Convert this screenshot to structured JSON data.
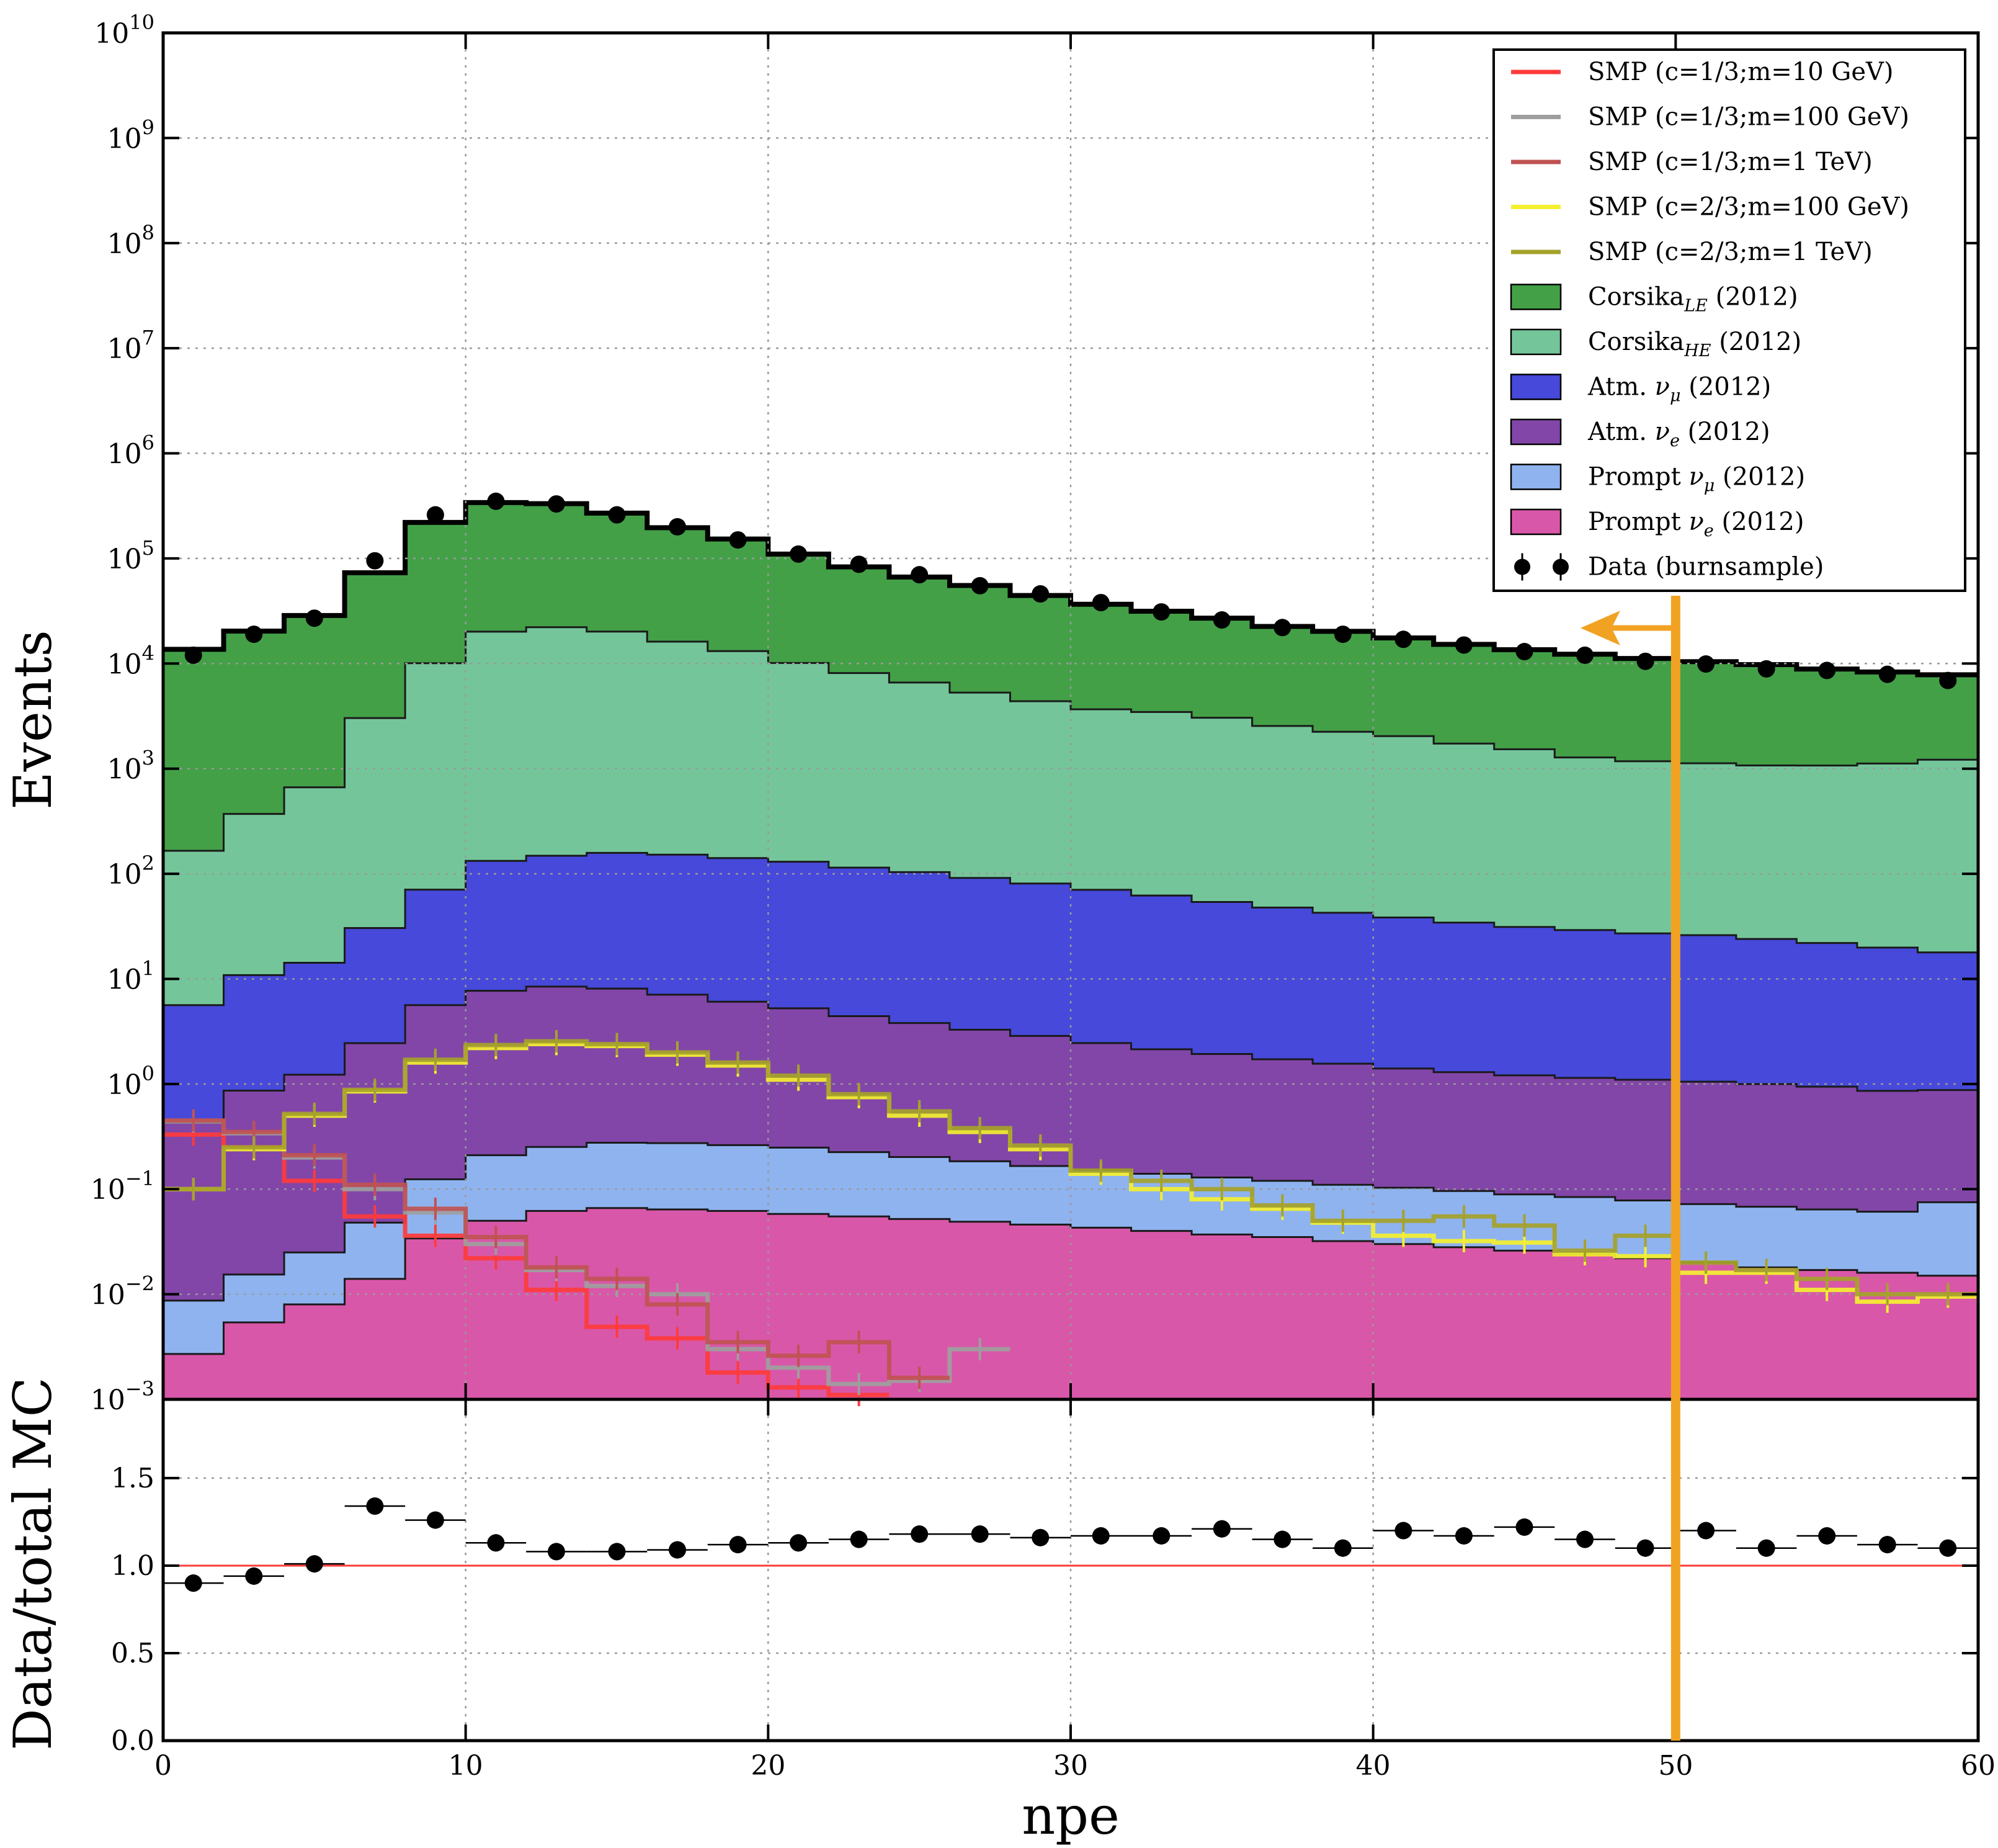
{
  "chart_data": [
    {
      "type": "histogram",
      "panel": "main",
      "xlabel": "",
      "ylabel": "Events",
      "xlim": [
        0,
        60
      ],
      "ylim": [
        0.001,
        10000000000
      ],
      "yscale": "log",
      "grid": true,
      "legend_position": "top-right",
      "bin_edges": [
        0,
        2,
        4,
        6,
        8,
        10,
        12,
        14,
        16,
        18,
        20,
        22,
        24,
        26,
        28,
        30,
        32,
        34,
        36,
        38,
        40,
        42,
        44,
        46,
        48,
        50,
        52,
        54,
        56,
        58,
        60
      ],
      "x_ticks": [
        "0",
        "10",
        "20",
        "30",
        "40",
        "50",
        "60"
      ],
      "y_ticks": [
        "10^-3",
        "10^-2",
        "10^-1",
        "10^0",
        "10^1",
        "10^2",
        "10^3",
        "10^4",
        "10^5",
        "10^6",
        "10^7",
        "10^8",
        "10^9",
        "10^10"
      ],
      "stacked_series": [
        {
          "name": "Prompt νe (2012)",
          "legend_main": "Prompt ",
          "legend_sym": "ν",
          "legend_sub": "e",
          "legend_tail": " (2012)",
          "color": "#d957a8",
          "values": [
            0.0027,
            0.0054,
            0.008,
            0.014,
            0.034,
            0.05,
            0.062,
            0.066,
            0.064,
            0.062,
            0.058,
            0.055,
            0.052,
            0.049,
            0.046,
            0.043,
            0.04,
            0.037,
            0.035,
            0.032,
            0.03,
            0.028,
            0.026,
            0.024,
            0.022,
            0.02,
            0.018,
            0.017,
            0.016,
            0.015
          ]
        },
        {
          "name": "Prompt νμ (2012)",
          "legend_main": "Prompt ",
          "legend_sym": "ν",
          "legend_sub": "μ",
          "legend_tail": " (2012)",
          "color": "#8fb3ef",
          "values": [
            0.006,
            0.01,
            0.017,
            0.034,
            0.09,
            0.16,
            0.19,
            0.21,
            0.21,
            0.2,
            0.19,
            0.17,
            0.15,
            0.135,
            0.12,
            0.11,
            0.1,
            0.092,
            0.085,
            0.078,
            0.073,
            0.068,
            0.063,
            0.06,
            0.056,
            0.052,
            0.05,
            0.047,
            0.045,
            0.06
          ]
        },
        {
          "name": "Atm. νe (2012)",
          "legend_main": "Atm. ",
          "legend_sym": "ν",
          "legend_sub": "e",
          "legend_tail": " (2012)",
          "color": "#8246a8",
          "values": [
            0.42,
            0.85,
            1.2,
            2.4,
            5.5,
            7.5,
            8.2,
            7.8,
            6.8,
            5.8,
            5.0,
            4.2,
            3.6,
            3.1,
            2.7,
            2.3,
            2.0,
            1.8,
            1.6,
            1.45,
            1.3,
            1.2,
            1.12,
            1.06,
            1.02,
            0.98,
            0.93,
            0.88,
            0.8,
            0.8
          ]
        },
        {
          "name": "Atm. νμ (2012)",
          "legend_main": "Atm. ",
          "legend_sym": "ν",
          "legend_sub": "μ",
          "legend_tail": " (2012)",
          "color": "#4649d9",
          "values": [
            5.2,
            10,
            13,
            28,
            65,
            125,
            140,
            150,
            145,
            135,
            125,
            110,
            100,
            88,
            78,
            68,
            60,
            52,
            46,
            41,
            37,
            33,
            30,
            28,
            26,
            25,
            23,
            21,
            19,
            17
          ]
        },
        {
          "name": "CorsikaHE (2012)",
          "legend_main": "Corsika",
          "legend_sym": "",
          "legend_sub": "HE",
          "legend_tail": " (2012)",
          "color": "#74c69a",
          "values": [
            160,
            360,
            650,
            3000,
            10000,
            20000,
            22000,
            20000,
            16000,
            13000,
            10000,
            8000,
            6500,
            5200,
            4300,
            3600,
            3400,
            3000,
            2500,
            2200,
            2000,
            1700,
            1500,
            1250,
            1150,
            1100,
            1050,
            1050,
            1100,
            1200
          ]
        },
        {
          "name": "CorsikaLE (2012)",
          "legend_main": "Corsika",
          "legend_sym": "",
          "legend_sub": "LE",
          "legend_tail": " (2012)",
          "color": "#43a047",
          "values": [
            13500,
            20000,
            28000,
            70000,
            210000,
            320000,
            310000,
            250000,
            180000,
            140000,
            100000,
            75000,
            60000,
            50000,
            40000,
            33000,
            28000,
            24000,
            20000,
            18000,
            15500,
            13500,
            12000,
            11000,
            10000,
            9300,
            8700,
            7800,
            7200,
            6600
          ]
        }
      ],
      "smp_series": [
        {
          "name": "SMP (c=1/3;m=10 GeV)",
          "color": "#ff3b3b",
          "values": [
            0.33,
            0.25,
            0.12,
            0.055,
            0.036,
            0.022,
            0.011,
            0.0049,
            0.0038,
            0.0018,
            0.0013,
            0.0011,
            0.0005,
            0.00035,
            null,
            null,
            null,
            null,
            null,
            null,
            null,
            null,
            null,
            null,
            null,
            null,
            null,
            null,
            null,
            null
          ]
        },
        {
          "name": "SMP (c=1/3;m=100 GeV)",
          "color": "#9e9e9e",
          "values": [
            0.44,
            0.34,
            0.2,
            0.1,
            0.06,
            0.03,
            0.017,
            0.012,
            0.01,
            0.003,
            0.002,
            0.0014,
            0.0015,
            0.003,
            null,
            null,
            null,
            null,
            null,
            null,
            null,
            null,
            null,
            null,
            null,
            null,
            null,
            null,
            null,
            null
          ]
        },
        {
          "name": "SMP (c=1/3;m=1 TeV)",
          "color": "#c05252",
          "values": [
            0.45,
            0.35,
            0.21,
            0.11,
            0.065,
            0.035,
            0.018,
            0.014,
            0.008,
            0.0035,
            0.0026,
            0.0035,
            0.0016,
            0.0009,
            null,
            null,
            null,
            null,
            null,
            null,
            null,
            null,
            null,
            null,
            null,
            null,
            null,
            null,
            null,
            null
          ]
        },
        {
          "name": "SMP (c=2/3;m=100 GeV)",
          "color": "#f4f030",
          "values": [
            0.1,
            0.24,
            0.5,
            0.85,
            1.6,
            2.2,
            2.4,
            2.3,
            1.9,
            1.5,
            1.1,
            0.75,
            0.5,
            0.35,
            0.24,
            0.14,
            0.1,
            0.08,
            0.065,
            0.048,
            0.036,
            0.032,
            0.031,
            0.024,
            0.023,
            0.016,
            0.016,
            0.011,
            0.0085,
            0.0095
          ]
        },
        {
          "name": "SMP (c=2/3;m=1 TeV)",
          "color": "#a5a22a",
          "values": [
            0.1,
            0.25,
            0.52,
            0.88,
            1.7,
            2.35,
            2.55,
            2.4,
            2.0,
            1.6,
            1.2,
            0.8,
            0.55,
            0.38,
            0.26,
            0.15,
            0.12,
            0.1,
            0.07,
            0.05,
            0.05,
            0.055,
            0.045,
            0.026,
            0.036,
            0.02,
            0.017,
            0.014,
            0.01,
            0.01
          ]
        }
      ],
      "data_series": {
        "name": "Data (burnsample)",
        "x": [
          1,
          3,
          5,
          7,
          9,
          11,
          13,
          15,
          17,
          19,
          21,
          23,
          25,
          27,
          29,
          31,
          33,
          35,
          37,
          39,
          41,
          43,
          45,
          47,
          49,
          51,
          53,
          55,
          57,
          59
        ],
        "y": [
          12000,
          19000,
          27000,
          95000,
          260000,
          350000,
          330000,
          260000,
          200000,
          150000,
          110000,
          88000,
          70000,
          55000,
          46000,
          38000,
          31000,
          26000,
          22000,
          19000,
          17000,
          15000,
          13000,
          12000,
          10500,
          9900,
          8900,
          8600,
          7900,
          6900
        ]
      },
      "annotation": {
        "type": "vertical cut line with left arrow",
        "x": 50,
        "color": "#f2a222"
      }
    },
    {
      "type": "scatter",
      "panel": "ratio",
      "xlabel": "npe",
      "ylabel": "Data/total MC",
      "xlim": [
        0,
        60
      ],
      "ylim": [
        0,
        1.95
      ],
      "grid": true,
      "x_ticks": [
        "0",
        "10",
        "20",
        "30",
        "40",
        "50",
        "60"
      ],
      "y_ticks": [
        "0.0",
        "0.5",
        "1.0",
        "1.5"
      ],
      "reference_line": {
        "y": 1.0,
        "color": "#ff3b3b"
      },
      "x": [
        1,
        3,
        5,
        7,
        9,
        11,
        13,
        15,
        17,
        19,
        21,
        23,
        25,
        27,
        29,
        31,
        33,
        35,
        37,
        39,
        41,
        43,
        45,
        47,
        49,
        51,
        53,
        55,
        57,
        59
      ],
      "y": [
        0.9,
        0.94,
        1.01,
        1.34,
        1.26,
        1.13,
        1.08,
        1.08,
        1.09,
        1.12,
        1.13,
        1.15,
        1.18,
        1.18,
        1.16,
        1.17,
        1.17,
        1.21,
        1.15,
        1.1,
        1.2,
        1.17,
        1.22,
        1.15,
        1.1,
        1.2,
        1.1,
        1.17,
        1.12,
        1.1
      ]
    }
  ]
}
